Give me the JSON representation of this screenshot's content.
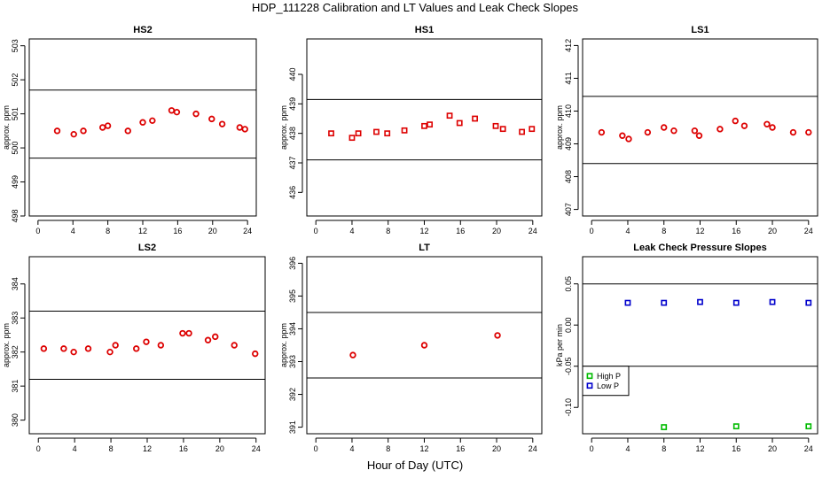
{
  "figure": {
    "title": "HDP_111228  Calibration and LT Values and Leak Check Slopes",
    "xlabel": "Hour of Day (UTC)"
  },
  "chart_data": [
    {
      "type": "scatter",
      "title": "HS2",
      "ylabel": "approx. ppm",
      "xlim": [
        -1,
        25
      ],
      "ylim": [
        498,
        503.2
      ],
      "xticks": [
        0,
        4,
        8,
        12,
        16,
        20,
        24
      ],
      "yticks": [
        498,
        499,
        500,
        501,
        502,
        503
      ],
      "hlines": [
        501.7,
        499.7
      ],
      "color": "#dd0000",
      "series": [
        {
          "name": "HS2",
          "marker": "circle",
          "x": [
            2.2,
            4.1,
            5.2,
            7.4,
            8.0,
            10.3,
            12.0,
            13.1,
            15.3,
            15.9,
            18.1,
            19.9,
            21.1,
            23.1,
            23.7
          ],
          "y": [
            500.5,
            500.4,
            500.5,
            500.6,
            500.65,
            500.5,
            500.75,
            500.8,
            501.1,
            501.05,
            501.0,
            500.85,
            500.7,
            500.6,
            500.55
          ]
        }
      ]
    },
    {
      "type": "scatter",
      "title": "HS1",
      "ylabel": "approx. ppm",
      "xlim": [
        -1,
        25
      ],
      "ylim": [
        435.2,
        441.2
      ],
      "xticks": [
        0,
        4,
        8,
        12,
        16,
        20,
        24
      ],
      "yticks": [
        436,
        437,
        438,
        439,
        440
      ],
      "hlines": [
        439.15,
        437.1
      ],
      "color": "#dd0000",
      "series": [
        {
          "name": "HS1",
          "marker": "square",
          "x": [
            1.7,
            4.0,
            4.7,
            6.7,
            7.9,
            9.8,
            12.0,
            12.6,
            14.8,
            15.9,
            17.6,
            19.9,
            20.7,
            22.8,
            23.9
          ],
          "y": [
            438.0,
            437.85,
            438.0,
            438.05,
            438.0,
            438.1,
            438.25,
            438.3,
            438.6,
            438.35,
            438.5,
            438.25,
            438.15,
            438.05,
            438.15
          ]
        }
      ]
    },
    {
      "type": "scatter",
      "title": "LS1",
      "ylabel": "approx. ppm",
      "xlim": [
        -1,
        25
      ],
      "ylim": [
        406.8,
        412.2
      ],
      "xticks": [
        0,
        4,
        8,
        12,
        16,
        20,
        24
      ],
      "yticks": [
        407,
        408,
        409,
        410,
        411,
        412
      ],
      "hlines": [
        410.45,
        408.4
      ],
      "color": "#dd0000",
      "series": [
        {
          "name": "LS1",
          "marker": "circle",
          "x": [
            1.1,
            3.4,
            4.1,
            6.2,
            8.0,
            9.1,
            11.4,
            11.9,
            14.2,
            15.9,
            16.9,
            19.4,
            20.0,
            22.3,
            24.0
          ],
          "y": [
            409.35,
            409.25,
            409.15,
            409.35,
            409.5,
            409.4,
            409.4,
            409.25,
            409.45,
            409.7,
            409.55,
            409.6,
            409.5,
            409.35,
            409.35
          ]
        }
      ]
    },
    {
      "type": "scatter",
      "title": "LS2",
      "ylabel": "approx. ppm",
      "xlim": [
        -1,
        25
      ],
      "ylim": [
        379.6,
        384.8
      ],
      "xticks": [
        0,
        4,
        8,
        12,
        16,
        20,
        24
      ],
      "yticks": [
        380,
        381,
        382,
        383,
        384
      ],
      "hlines": [
        383.2,
        381.2
      ],
      "color": "#dd0000",
      "series": [
        {
          "name": "LS2",
          "marker": "circle",
          "x": [
            0.6,
            2.8,
            3.9,
            5.5,
            7.9,
            8.5,
            10.8,
            11.9,
            13.5,
            15.9,
            16.6,
            18.7,
            19.5,
            21.6,
            23.9
          ],
          "y": [
            382.1,
            382.1,
            382.0,
            382.1,
            382.0,
            382.2,
            382.1,
            382.3,
            382.2,
            382.55,
            382.55,
            382.35,
            382.45,
            382.2,
            381.95
          ]
        }
      ]
    },
    {
      "type": "scatter",
      "title": "LT",
      "ylabel": "approx. ppm",
      "xlim": [
        -1,
        25
      ],
      "ylim": [
        390.8,
        396.2
      ],
      "xticks": [
        0,
        4,
        8,
        12,
        16,
        20,
        24
      ],
      "yticks": [
        391,
        392,
        393,
        394,
        395,
        396
      ],
      "hlines": [
        394.5,
        392.5
      ],
      "color": "#dd0000",
      "series": [
        {
          "name": "LT",
          "marker": "circle",
          "x": [
            4.1,
            12.0,
            20.1
          ],
          "y": [
            393.2,
            393.5,
            393.8
          ]
        }
      ]
    },
    {
      "type": "scatter",
      "title": "Leak Check Pressure Slopes",
      "ylabel": "kPa per min",
      "xlim": [
        -1,
        25
      ],
      "ylim": [
        -0.132,
        0.083
      ],
      "xticks": [
        0,
        4,
        8,
        12,
        16,
        20,
        24
      ],
      "yticks": [
        -0.1,
        -0.05,
        0.0,
        0.05
      ],
      "ytick_labels": [
        "-0.10",
        "-0.05",
        "0.00",
        "0.05"
      ],
      "hlines": [
        0.05,
        -0.05
      ],
      "legend": {
        "position": "bottom-left",
        "entries": [
          "High P",
          "Low P"
        ]
      },
      "series": [
        {
          "name": "High P",
          "color": "#00bb00",
          "marker": "square",
          "x": [
            8,
            16,
            24
          ],
          "y": [
            -0.124,
            -0.123,
            -0.123
          ]
        },
        {
          "name": "Low P",
          "color": "#0000cc",
          "marker": "square",
          "x": [
            4,
            8,
            12,
            16,
            20,
            24
          ],
          "y": [
            0.027,
            0.027,
            0.028,
            0.027,
            0.028,
            0.027
          ]
        }
      ]
    }
  ]
}
